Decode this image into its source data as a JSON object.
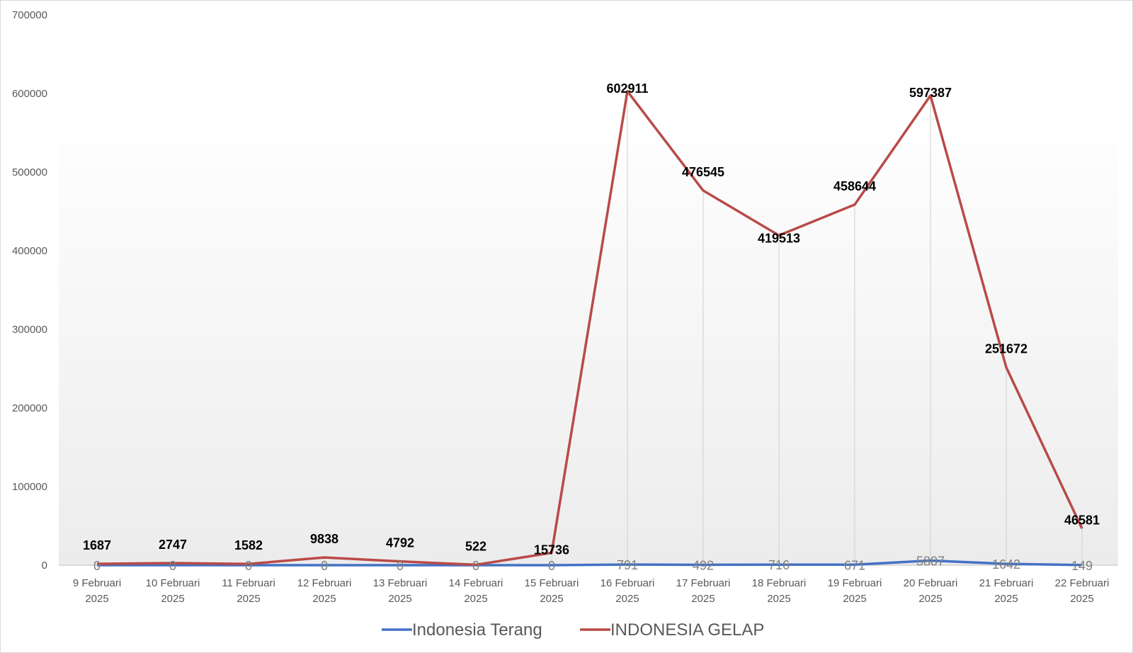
{
  "chart_data": {
    "type": "line",
    "title": "",
    "xlabel": "",
    "ylabel": "",
    "ylim": [
      0,
      700000
    ],
    "yticks": [
      0,
      100000,
      200000,
      300000,
      400000,
      500000,
      600000,
      700000
    ],
    "grid": "vertical drop lines at data points",
    "legend_position": "bottom",
    "categories": [
      [
        "9 Februari",
        "2025"
      ],
      [
        "10 Februari",
        "2025"
      ],
      [
        "11 Februari",
        "2025"
      ],
      [
        "12 Februari",
        "2025"
      ],
      [
        "13 Februari",
        "2025"
      ],
      [
        "14 Februari",
        "2025"
      ],
      [
        "15 Februari",
        "2025"
      ],
      [
        "16 Februari",
        "2025"
      ],
      [
        "17 Februari",
        "2025"
      ],
      [
        "18 Februari",
        "2025"
      ],
      [
        "19 Februari",
        "2025"
      ],
      [
        "20 Februari",
        "2025"
      ],
      [
        "21 Februari",
        "2025"
      ],
      [
        "22 Februari",
        "2025"
      ]
    ],
    "series": [
      {
        "name": "Indonesia Terang",
        "color": "#4472c4",
        "values": [
          0,
          0,
          0,
          0,
          0,
          0,
          0,
          791,
          492,
          716,
          671,
          5807,
          1642,
          149
        ]
      },
      {
        "name": "INDONESIA GELAP",
        "color": "#b94a48",
        "values": [
          1687,
          2747,
          1582,
          9838,
          4792,
          522,
          15736,
          602911,
          476545,
          419513,
          458644,
          597387,
          251672,
          46581
        ]
      }
    ]
  }
}
